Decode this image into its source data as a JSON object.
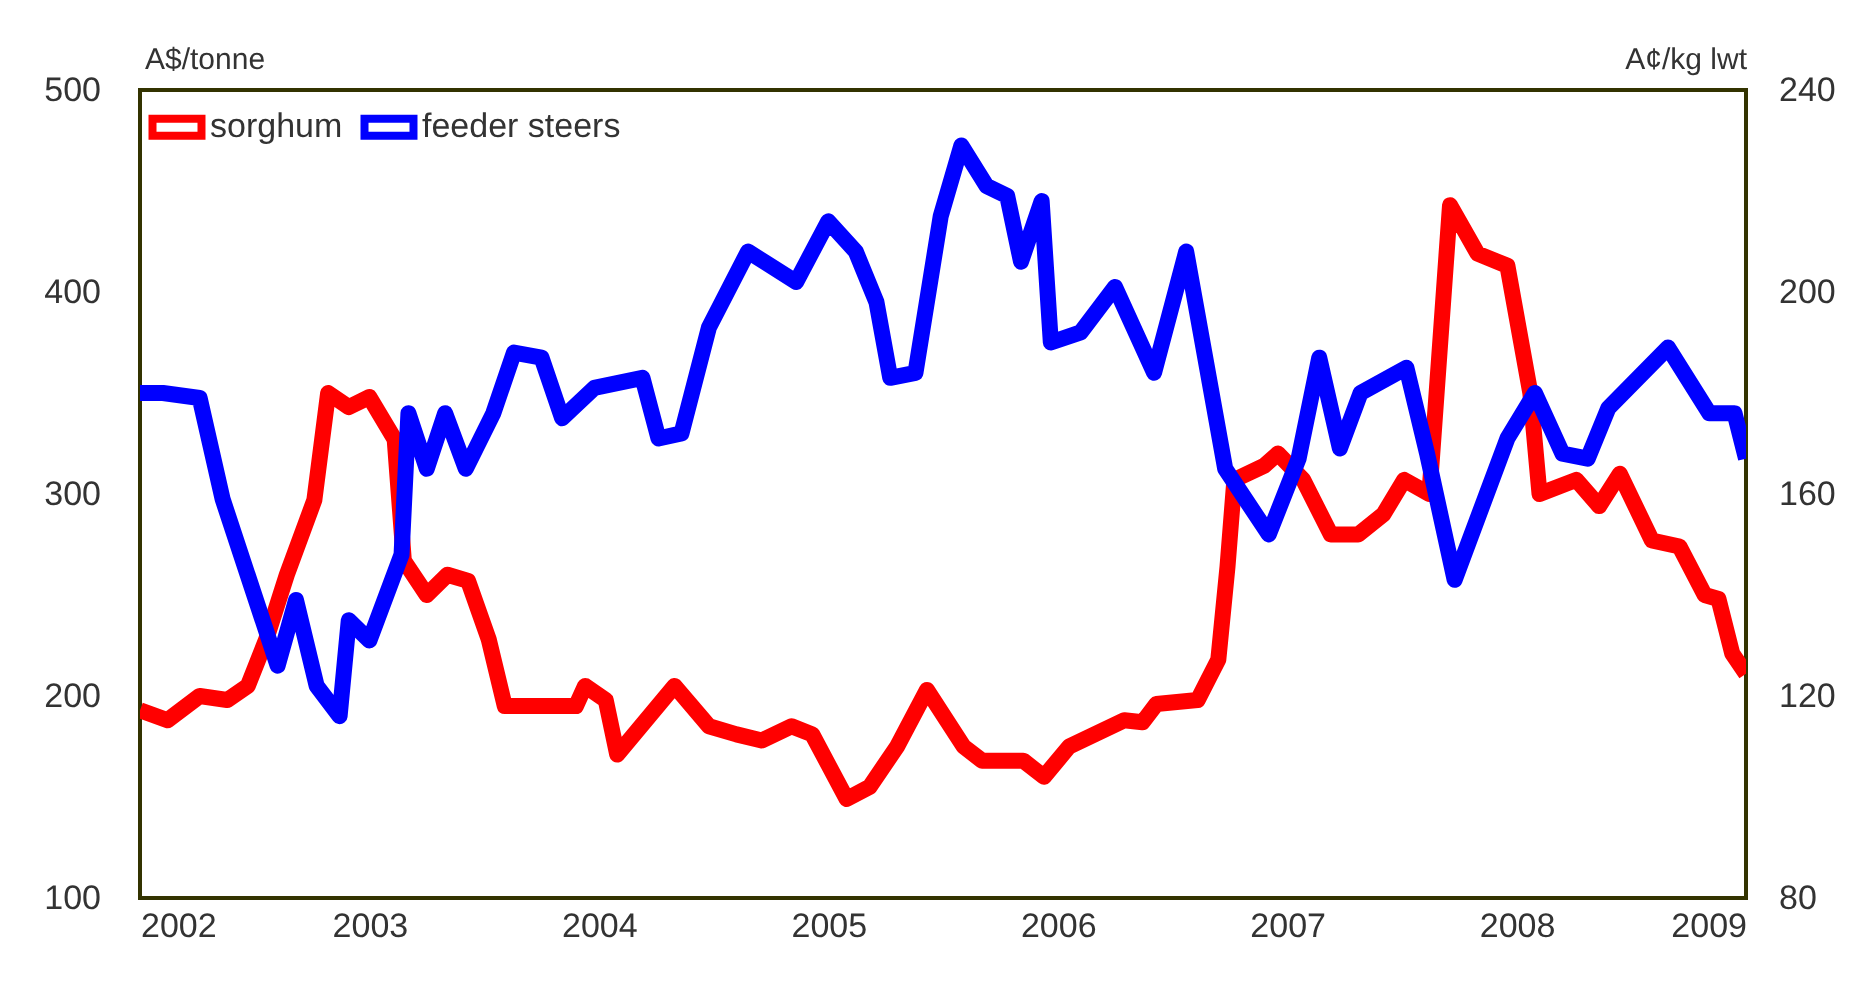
{
  "chart_data": {
    "type": "line",
    "ylabel": "A$/tonne",
    "y2label": "A¢/kg lwt",
    "xlim": [
      2002,
      2009
    ],
    "xticks": [
      2002,
      2003,
      2004,
      2005,
      2006,
      2007,
      2008,
      2009
    ],
    "ylim": [
      100,
      500
    ],
    "yticks": [
      100,
      200,
      300,
      400,
      500
    ],
    "y2lim": [
      80,
      240
    ],
    "y2ticks": [
      80,
      120,
      160,
      200,
      240
    ],
    "legend": "top left",
    "grid": false,
    "marker": "none",
    "line_style": "solid",
    "series": [
      {
        "name": "sorghum",
        "color": "#ff0000",
        "x": [
          2002.0,
          2002.12,
          2002.26,
          2002.38,
          2002.47,
          2002.55,
          2002.64,
          2002.76,
          2002.82,
          2002.91,
          2003.0,
          2003.11,
          2003.15,
          2003.25,
          2003.34,
          2003.43,
          2003.52,
          2003.59,
          2003.9,
          2003.94,
          2004.03,
          2004.08,
          2004.33,
          2004.48,
          2004.6,
          2004.71,
          2004.84,
          2004.93,
          2005.08,
          2005.18,
          2005.3,
          2005.43,
          2005.59,
          2005.67,
          2005.85,
          2005.94,
          2006.05,
          2006.29,
          2006.37,
          2006.43,
          2006.61,
          2006.7,
          2006.74,
          2006.77,
          2006.9,
          2006.96,
          2007.07,
          2007.19,
          2007.31,
          2007.42,
          2007.51,
          2007.62,
          2007.71,
          2007.83,
          2007.96,
          2008.06,
          2008.1,
          2008.26,
          2008.36,
          2008.45,
          2008.59,
          2008.71,
          2008.82,
          2008.88,
          2008.94,
          2009.0
        ],
        "values": [
          193,
          188,
          200,
          198,
          205,
          228,
          260,
          297,
          350,
          343,
          348,
          327,
          267,
          250,
          260,
          257,
          228,
          195,
          195,
          205,
          198,
          171,
          205,
          185,
          181,
          178,
          185,
          181,
          149,
          155,
          175,
          203,
          175,
          168,
          168,
          160,
          175,
          188,
          187,
          196,
          198,
          218,
          264,
          307,
          314,
          320,
          307,
          280,
          280,
          290,
          307,
          300,
          443,
          419,
          413,
          350,
          300,
          307,
          294,
          310,
          277,
          274,
          250,
          248,
          221,
          211
        ]
      },
      {
        "name": "feeder steers",
        "color": "#0000ff",
        "axis": "y2",
        "x": [
          2002.0,
          2002.1,
          2002.26,
          2002.36,
          2002.6,
          2002.68,
          2002.77,
          2002.87,
          2002.91,
          2003.0,
          2003.14,
          2003.17,
          2003.25,
          2003.33,
          2003.42,
          2003.54,
          2003.63,
          2003.75,
          2003.84,
          2003.98,
          2004.19,
          2004.26,
          2004.36,
          2004.48,
          2004.65,
          2004.86,
          2005.0,
          2005.12,
          2005.21,
          2005.27,
          2005.38,
          2005.49,
          2005.58,
          2005.69,
          2005.78,
          2005.84,
          2005.93,
          2005.97,
          2006.1,
          2006.25,
          2006.42,
          2006.56,
          2006.73,
          2006.92,
          2007.05,
          2007.14,
          2007.23,
          2007.32,
          2007.52,
          2007.61,
          2007.73,
          2007.96,
          2008.08,
          2008.2,
          2008.31,
          2008.4,
          2008.66,
          2008.84,
          2008.95,
          2009.0
        ],
        "values": [
          180,
          180,
          179,
          159,
          126,
          139,
          122,
          116,
          135,
          131,
          148,
          176,
          165,
          176,
          165,
          176,
          188,
          187,
          175,
          181,
          183,
          171,
          172,
          193,
          208,
          202,
          214,
          208,
          198,
          183,
          184,
          215,
          229,
          221,
          219,
          206,
          218,
          190,
          192,
          201,
          184,
          208,
          165,
          152,
          167,
          187,
          169,
          180,
          185,
          168,
          143,
          171,
          180,
          168,
          167,
          177,
          189,
          176,
          176,
          167
        ]
      }
    ]
  }
}
